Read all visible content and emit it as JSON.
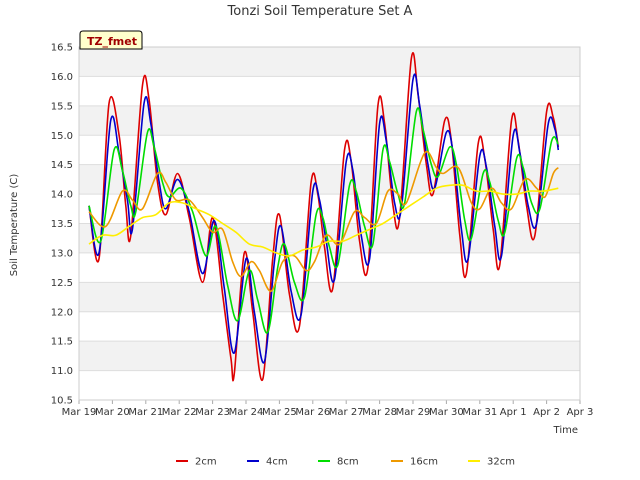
{
  "chart_data": {
    "type": "line",
    "title": "Tonzi Soil Temperature Set A",
    "xlabel": "Time",
    "ylabel": "Soil Temperature (C)",
    "badge": "TZ_fmet",
    "ylim": [
      10.5,
      16.5
    ],
    "yticks": [
      10.5,
      11.0,
      11.5,
      12.0,
      12.5,
      13.0,
      13.5,
      14.0,
      14.5,
      15.0,
      15.5,
      16.0,
      16.5
    ],
    "xlim": [
      0,
      15
    ],
    "xticks": [
      {
        "v": 0,
        "label": "Mar 19"
      },
      {
        "v": 1,
        "label": "Mar 20"
      },
      {
        "v": 2,
        "label": "Mar 21"
      },
      {
        "v": 3,
        "label": "Mar 22"
      },
      {
        "v": 4,
        "label": "Mar 23"
      },
      {
        "v": 5,
        "label": "Mar 24"
      },
      {
        "v": 6,
        "label": "Mar 25"
      },
      {
        "v": 7,
        "label": "Mar 26"
      },
      {
        "v": 8,
        "label": "Mar 27"
      },
      {
        "v": 9,
        "label": "Mar 28"
      },
      {
        "v": 10,
        "label": "Mar 29"
      },
      {
        "v": 11,
        "label": "Mar 30"
      },
      {
        "v": 12,
        "label": "Mar 31"
      },
      {
        "v": 13,
        "label": "Apr 1"
      },
      {
        "v": 14,
        "label": "Apr 2"
      },
      {
        "v": 15,
        "label": "Apr 3"
      }
    ],
    "grid": true,
    "legend_position": "bottom",
    "series": [
      {
        "name": "2cm",
        "color": "#dd0000",
        "points": [
          [
            0.3,
            13.8
          ],
          [
            0.6,
            12.9
          ],
          [
            0.9,
            15.55
          ],
          [
            1.2,
            15.0
          ],
          [
            1.4,
            13.8
          ],
          [
            1.55,
            13.3
          ],
          [
            1.9,
            15.85
          ],
          [
            2.1,
            15.6
          ],
          [
            2.35,
            14.2
          ],
          [
            2.6,
            13.65
          ],
          [
            2.95,
            14.35
          ],
          [
            3.3,
            13.6
          ],
          [
            3.7,
            12.5
          ],
          [
            4.0,
            13.6
          ],
          [
            4.3,
            12.3
          ],
          [
            4.55,
            11.2
          ],
          [
            4.65,
            10.95
          ],
          [
            4.95,
            13.0
          ],
          [
            5.2,
            12.0
          ],
          [
            5.5,
            10.85
          ],
          [
            5.8,
            12.9
          ],
          [
            6.0,
            13.65
          ],
          [
            6.3,
            12.3
          ],
          [
            6.6,
            11.75
          ],
          [
            6.95,
            14.2
          ],
          [
            7.15,
            14.0
          ],
          [
            7.35,
            13.1
          ],
          [
            7.6,
            12.4
          ],
          [
            7.95,
            14.75
          ],
          [
            8.15,
            14.55
          ],
          [
            8.4,
            13.2
          ],
          [
            8.65,
            12.75
          ],
          [
            8.95,
            15.5
          ],
          [
            9.15,
            15.2
          ],
          [
            9.4,
            13.8
          ],
          [
            9.6,
            13.6
          ],
          [
            9.95,
            16.3
          ],
          [
            10.15,
            15.7
          ],
          [
            10.4,
            14.5
          ],
          [
            10.6,
            14.0
          ],
          [
            10.95,
            15.25
          ],
          [
            11.15,
            14.9
          ],
          [
            11.4,
            13.3
          ],
          [
            11.6,
            12.65
          ],
          [
            11.95,
            14.85
          ],
          [
            12.15,
            14.6
          ],
          [
            12.4,
            13.4
          ],
          [
            12.6,
            12.8
          ],
          [
            12.95,
            15.25
          ],
          [
            13.15,
            14.9
          ],
          [
            13.4,
            13.8
          ],
          [
            13.65,
            13.3
          ],
          [
            14.0,
            15.4
          ],
          [
            14.2,
            15.3
          ],
          [
            14.35,
            14.8
          ]
        ]
      },
      {
        "name": "4cm",
        "color": "#0000cc",
        "points": [
          [
            0.3,
            13.8
          ],
          [
            0.6,
            13.0
          ],
          [
            0.95,
            15.25
          ],
          [
            1.2,
            14.7
          ],
          [
            1.45,
            13.9
          ],
          [
            1.6,
            13.4
          ],
          [
            1.95,
            15.55
          ],
          [
            2.15,
            15.2
          ],
          [
            2.4,
            14.2
          ],
          [
            2.6,
            13.75
          ],
          [
            2.95,
            14.25
          ],
          [
            3.3,
            13.7
          ],
          [
            3.7,
            12.65
          ],
          [
            4.05,
            13.55
          ],
          [
            4.35,
            12.4
          ],
          [
            4.65,
            11.3
          ],
          [
            5.0,
            12.9
          ],
          [
            5.25,
            12.0
          ],
          [
            5.55,
            11.15
          ],
          [
            5.85,
            12.85
          ],
          [
            6.05,
            13.45
          ],
          [
            6.35,
            12.35
          ],
          [
            6.65,
            11.95
          ],
          [
            7.0,
            14.05
          ],
          [
            7.2,
            13.9
          ],
          [
            7.4,
            13.2
          ],
          [
            7.65,
            12.55
          ],
          [
            8.0,
            14.55
          ],
          [
            8.2,
            14.4
          ],
          [
            8.45,
            13.3
          ],
          [
            8.7,
            12.9
          ],
          [
            9.0,
            15.2
          ],
          [
            9.2,
            14.9
          ],
          [
            9.45,
            13.85
          ],
          [
            9.65,
            13.75
          ],
          [
            10.0,
            15.95
          ],
          [
            10.2,
            15.5
          ],
          [
            10.45,
            14.5
          ],
          [
            10.65,
            14.1
          ],
          [
            11.0,
            15.05
          ],
          [
            11.2,
            14.7
          ],
          [
            11.45,
            13.4
          ],
          [
            11.65,
            12.9
          ],
          [
            12.0,
            14.65
          ],
          [
            12.2,
            14.45
          ],
          [
            12.45,
            13.45
          ],
          [
            12.65,
            12.95
          ],
          [
            13.0,
            15.0
          ],
          [
            13.2,
            14.7
          ],
          [
            13.45,
            13.8
          ],
          [
            13.7,
            13.5
          ],
          [
            14.05,
            15.2
          ],
          [
            14.25,
            15.1
          ],
          [
            14.35,
            14.75
          ]
        ]
      },
      {
        "name": "8cm",
        "color": "#00dd00",
        "points": [
          [
            0.3,
            13.8
          ],
          [
            0.65,
            13.2
          ],
          [
            1.05,
            14.75
          ],
          [
            1.3,
            14.4
          ],
          [
            1.55,
            13.8
          ],
          [
            1.7,
            13.7
          ],
          [
            2.05,
            15.05
          ],
          [
            2.25,
            14.8
          ],
          [
            2.5,
            14.2
          ],
          [
            2.7,
            13.95
          ],
          [
            3.05,
            14.1
          ],
          [
            3.4,
            13.7
          ],
          [
            3.8,
            12.95
          ],
          [
            4.1,
            13.45
          ],
          [
            4.45,
            12.45
          ],
          [
            4.75,
            11.85
          ],
          [
            5.1,
            12.7
          ],
          [
            5.35,
            12.2
          ],
          [
            5.65,
            11.65
          ],
          [
            5.95,
            12.75
          ],
          [
            6.15,
            13.15
          ],
          [
            6.45,
            12.5
          ],
          [
            6.75,
            12.25
          ],
          [
            7.1,
            13.65
          ],
          [
            7.3,
            13.6
          ],
          [
            7.5,
            13.1
          ],
          [
            7.75,
            12.8
          ],
          [
            8.1,
            14.15
          ],
          [
            8.3,
            14.05
          ],
          [
            8.55,
            13.45
          ],
          [
            8.8,
            13.15
          ],
          [
            9.1,
            14.75
          ],
          [
            9.3,
            14.55
          ],
          [
            9.55,
            14.0
          ],
          [
            9.75,
            13.85
          ],
          [
            10.1,
            15.4
          ],
          [
            10.3,
            15.1
          ],
          [
            10.55,
            14.5
          ],
          [
            10.75,
            14.3
          ],
          [
            11.1,
            14.8
          ],
          [
            11.3,
            14.5
          ],
          [
            11.55,
            13.55
          ],
          [
            11.75,
            13.25
          ],
          [
            12.1,
            14.35
          ],
          [
            12.3,
            14.2
          ],
          [
            12.55,
            13.55
          ],
          [
            12.75,
            13.35
          ],
          [
            13.1,
            14.6
          ],
          [
            13.3,
            14.45
          ],
          [
            13.55,
            13.85
          ],
          [
            13.8,
            13.75
          ],
          [
            14.15,
            14.9
          ],
          [
            14.35,
            14.85
          ]
        ]
      },
      {
        "name": "16cm",
        "color": "#ee9900",
        "points": [
          [
            0.3,
            13.7
          ],
          [
            0.8,
            13.45
          ],
          [
            1.3,
            14.05
          ],
          [
            1.6,
            13.9
          ],
          [
            1.9,
            13.75
          ],
          [
            2.35,
            14.35
          ],
          [
            2.6,
            14.2
          ],
          [
            2.9,
            13.9
          ],
          [
            3.3,
            13.9
          ],
          [
            3.7,
            13.6
          ],
          [
            4.0,
            13.35
          ],
          [
            4.3,
            13.4
          ],
          [
            4.6,
            12.85
          ],
          [
            4.85,
            12.6
          ],
          [
            5.15,
            12.85
          ],
          [
            5.4,
            12.7
          ],
          [
            5.75,
            12.35
          ],
          [
            6.1,
            12.85
          ],
          [
            6.45,
            12.95
          ],
          [
            6.8,
            12.7
          ],
          [
            7.05,
            12.85
          ],
          [
            7.4,
            13.3
          ],
          [
            7.8,
            13.15
          ],
          [
            8.25,
            13.7
          ],
          [
            8.55,
            13.6
          ],
          [
            8.9,
            13.5
          ],
          [
            9.25,
            14.05
          ],
          [
            9.55,
            14.0
          ],
          [
            9.8,
            13.85
          ],
          [
            10.35,
            14.7
          ],
          [
            10.7,
            14.45
          ],
          [
            10.9,
            14.35
          ],
          [
            11.35,
            14.45
          ],
          [
            11.75,
            13.85
          ],
          [
            12.0,
            13.75
          ],
          [
            12.35,
            14.1
          ],
          [
            12.65,
            13.85
          ],
          [
            12.95,
            13.75
          ],
          [
            13.35,
            14.25
          ],
          [
            13.7,
            14.1
          ],
          [
            13.95,
            13.95
          ],
          [
            14.2,
            14.35
          ],
          [
            14.35,
            14.45
          ]
        ]
      },
      {
        "name": "32cm",
        "color": "#ffee00",
        "points": [
          [
            0.3,
            13.15
          ],
          [
            0.7,
            13.3
          ],
          [
            1.1,
            13.3
          ],
          [
            1.5,
            13.45
          ],
          [
            1.9,
            13.6
          ],
          [
            2.3,
            13.65
          ],
          [
            2.7,
            13.85
          ],
          [
            3.1,
            13.85
          ],
          [
            3.5,
            13.75
          ],
          [
            3.9,
            13.65
          ],
          [
            4.3,
            13.5
          ],
          [
            4.7,
            13.35
          ],
          [
            5.1,
            13.15
          ],
          [
            5.5,
            13.1
          ],
          [
            5.9,
            13.0
          ],
          [
            6.3,
            12.95
          ],
          [
            6.7,
            13.05
          ],
          [
            7.1,
            13.1
          ],
          [
            7.5,
            13.2
          ],
          [
            7.9,
            13.2
          ],
          [
            8.3,
            13.3
          ],
          [
            8.7,
            13.4
          ],
          [
            9.1,
            13.5
          ],
          [
            9.5,
            13.65
          ],
          [
            9.9,
            13.8
          ],
          [
            10.3,
            13.95
          ],
          [
            10.7,
            14.1
          ],
          [
            11.1,
            14.15
          ],
          [
            11.5,
            14.15
          ],
          [
            11.9,
            14.05
          ],
          [
            12.3,
            14.05
          ],
          [
            12.7,
            14.0
          ],
          [
            13.1,
            14.0
          ],
          [
            13.5,
            14.05
          ],
          [
            13.9,
            14.05
          ],
          [
            14.35,
            14.1
          ]
        ]
      }
    ]
  }
}
